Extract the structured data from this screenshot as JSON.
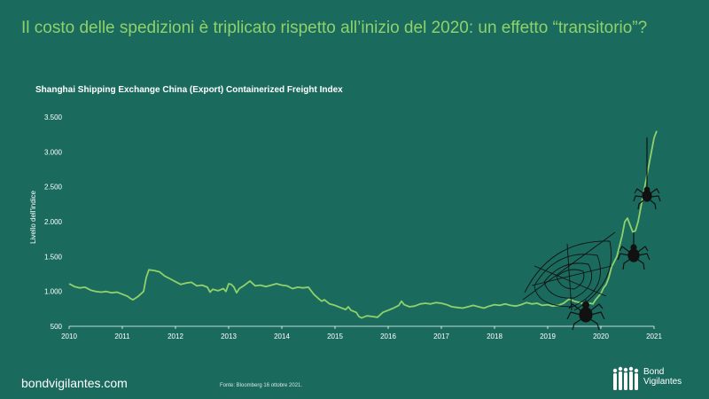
{
  "header": {
    "title": "Il costo delle spedizioni è triplicato rispetto all’inizio del 2020: un effetto “transitorio”?",
    "subtitle": "Shanghai  Shipping Exchange China (Export) Containerized Freight Index"
  },
  "footer": {
    "site": "bondvigilantes.com",
    "source": "Fonte: Bloomberg 16 ottobre 2021.",
    "logo_line1": "Bond",
    "logo_line2": "Vigilantes"
  },
  "colors": {
    "background": "#1a6b5e",
    "title": "#8fd16a",
    "line": "#8fd16a",
    "axis_text": "#ffffff",
    "decoration": "#111111"
  },
  "decorations": [
    "spider-web-icon",
    "spider-icon",
    "spider-icon",
    "spider-icon"
  ],
  "chart_data": {
    "type": "line",
    "title": "Shanghai  Shipping Exchange China (Export) Containerized Freight Index",
    "xlabel": "",
    "ylabel": "Livello dell'indice",
    "xlim": [
      2010,
      2021
    ],
    "ylim": [
      500,
      3500
    ],
    "yticks": [
      {
        "value": 500,
        "label": "500"
      },
      {
        "value": 1000,
        "label": "1.000"
      },
      {
        "value": 1500,
        "label": "1.500"
      },
      {
        "value": 2000,
        "label": "2.000"
      },
      {
        "value": 2500,
        "label": "2.500"
      },
      {
        "value": 3000,
        "label": "3.000"
      },
      {
        "value": 3500,
        "label": "3.500"
      }
    ],
    "xticks": [
      {
        "value": 2010,
        "label": "2010"
      },
      {
        "value": 2011,
        "label": "2011"
      },
      {
        "value": 2012,
        "label": "2012"
      },
      {
        "value": 2013,
        "label": "2013"
      },
      {
        "value": 2014,
        "label": "2014"
      },
      {
        "value": 2015,
        "label": "2015"
      },
      {
        "value": 2016,
        "label": "2016"
      },
      {
        "value": 2017,
        "label": "2017"
      },
      {
        "value": 2018,
        "label": "2018"
      },
      {
        "value": 2019,
        "label": "2019"
      },
      {
        "value": 2020,
        "label": "2020"
      },
      {
        "value": 2021,
        "label": "2021"
      }
    ],
    "grid": false,
    "series": [
      {
        "points": [
          [
            2010.0,
            1110
          ],
          [
            2010.1,
            1070
          ],
          [
            2010.2,
            1050
          ],
          [
            2010.3,
            1060
          ],
          [
            2010.4,
            1020
          ],
          [
            2010.5,
            1000
          ],
          [
            2010.6,
            990
          ],
          [
            2010.7,
            1000
          ],
          [
            2010.8,
            980
          ],
          [
            2010.9,
            990
          ],
          [
            2011.0,
            960
          ],
          [
            2011.1,
            930
          ],
          [
            2011.15,
            900
          ],
          [
            2011.2,
            880
          ],
          [
            2011.3,
            930
          ],
          [
            2011.4,
            1000
          ],
          [
            2011.45,
            1200
          ],
          [
            2011.5,
            1310
          ],
          [
            2011.6,
            1300
          ],
          [
            2011.7,
            1280
          ],
          [
            2011.8,
            1220
          ],
          [
            2011.9,
            1180
          ],
          [
            2012.0,
            1140
          ],
          [
            2012.1,
            1100
          ],
          [
            2012.2,
            1120
          ],
          [
            2012.3,
            1130
          ],
          [
            2012.4,
            1080
          ],
          [
            2012.5,
            1090
          ],
          [
            2012.6,
            1060
          ],
          [
            2012.65,
            990
          ],
          [
            2012.7,
            1030
          ],
          [
            2012.8,
            1010
          ],
          [
            2012.9,
            1040
          ],
          [
            2012.95,
            1000
          ],
          [
            2013.0,
            1110
          ],
          [
            2013.05,
            1100
          ],
          [
            2013.1,
            1060
          ],
          [
            2013.15,
            980
          ],
          [
            2013.2,
            1040
          ],
          [
            2013.3,
            1090
          ],
          [
            2013.4,
            1150
          ],
          [
            2013.5,
            1080
          ],
          [
            2013.6,
            1090
          ],
          [
            2013.7,
            1070
          ],
          [
            2013.8,
            1090
          ],
          [
            2013.9,
            1110
          ],
          [
            2014.0,
            1090
          ],
          [
            2014.1,
            1080
          ],
          [
            2014.2,
            1040
          ],
          [
            2014.3,
            1060
          ],
          [
            2014.4,
            1050
          ],
          [
            2014.5,
            1060
          ],
          [
            2014.6,
            960
          ],
          [
            2014.7,
            890
          ],
          [
            2014.75,
            860
          ],
          [
            2014.8,
            880
          ],
          [
            2014.9,
            820
          ],
          [
            2015.0,
            800
          ],
          [
            2015.1,
            770
          ],
          [
            2015.2,
            740
          ],
          [
            2015.25,
            780
          ],
          [
            2015.3,
            730
          ],
          [
            2015.4,
            700
          ],
          [
            2015.45,
            640
          ],
          [
            2015.5,
            620
          ],
          [
            2015.6,
            650
          ],
          [
            2015.7,
            640
          ],
          [
            2015.8,
            630
          ],
          [
            2015.9,
            700
          ],
          [
            2016.0,
            730
          ],
          [
            2016.1,
            760
          ],
          [
            2016.2,
            800
          ],
          [
            2016.25,
            860
          ],
          [
            2016.3,
            810
          ],
          [
            2016.4,
            780
          ],
          [
            2016.5,
            790
          ],
          [
            2016.6,
            820
          ],
          [
            2016.7,
            830
          ],
          [
            2016.8,
            820
          ],
          [
            2016.9,
            840
          ],
          [
            2017.0,
            830
          ],
          [
            2017.1,
            810
          ],
          [
            2017.2,
            780
          ],
          [
            2017.3,
            770
          ],
          [
            2017.4,
            760
          ],
          [
            2017.5,
            780
          ],
          [
            2017.6,
            800
          ],
          [
            2017.7,
            780
          ],
          [
            2017.8,
            760
          ],
          [
            2017.9,
            790
          ],
          [
            2018.0,
            810
          ],
          [
            2018.1,
            800
          ],
          [
            2018.2,
            820
          ],
          [
            2018.3,
            800
          ],
          [
            2018.4,
            790
          ],
          [
            2018.5,
            810
          ],
          [
            2018.6,
            840
          ],
          [
            2018.7,
            820
          ],
          [
            2018.8,
            830
          ],
          [
            2018.9,
            800
          ],
          [
            2019.0,
            810
          ],
          [
            2019.1,
            790
          ],
          [
            2019.2,
            800
          ],
          [
            2019.3,
            830
          ],
          [
            2019.4,
            890
          ],
          [
            2019.5,
            860
          ],
          [
            2019.6,
            840
          ],
          [
            2019.7,
            820
          ],
          [
            2019.8,
            830
          ],
          [
            2019.85,
            820
          ],
          [
            2019.9,
            880
          ],
          [
            2020.0,
            970
          ],
          [
            2020.05,
            1050
          ],
          [
            2020.1,
            1100
          ],
          [
            2020.15,
            1200
          ],
          [
            2020.2,
            1350
          ],
          [
            2020.3,
            1500
          ],
          [
            2020.4,
            1800
          ],
          [
            2020.45,
            2000
          ],
          [
            2020.5,
            2050
          ],
          [
            2020.55,
            1950
          ],
          [
            2020.6,
            1850
          ],
          [
            2020.65,
            1870
          ],
          [
            2020.7,
            2000
          ],
          [
            2020.75,
            2200
          ],
          [
            2020.8,
            2400
          ],
          [
            2020.85,
            2600
          ],
          [
            2020.9,
            2800
          ],
          [
            2020.95,
            3000
          ],
          [
            2021.0,
            3200
          ],
          [
            2021.05,
            3300
          ]
        ]
      }
    ]
  }
}
